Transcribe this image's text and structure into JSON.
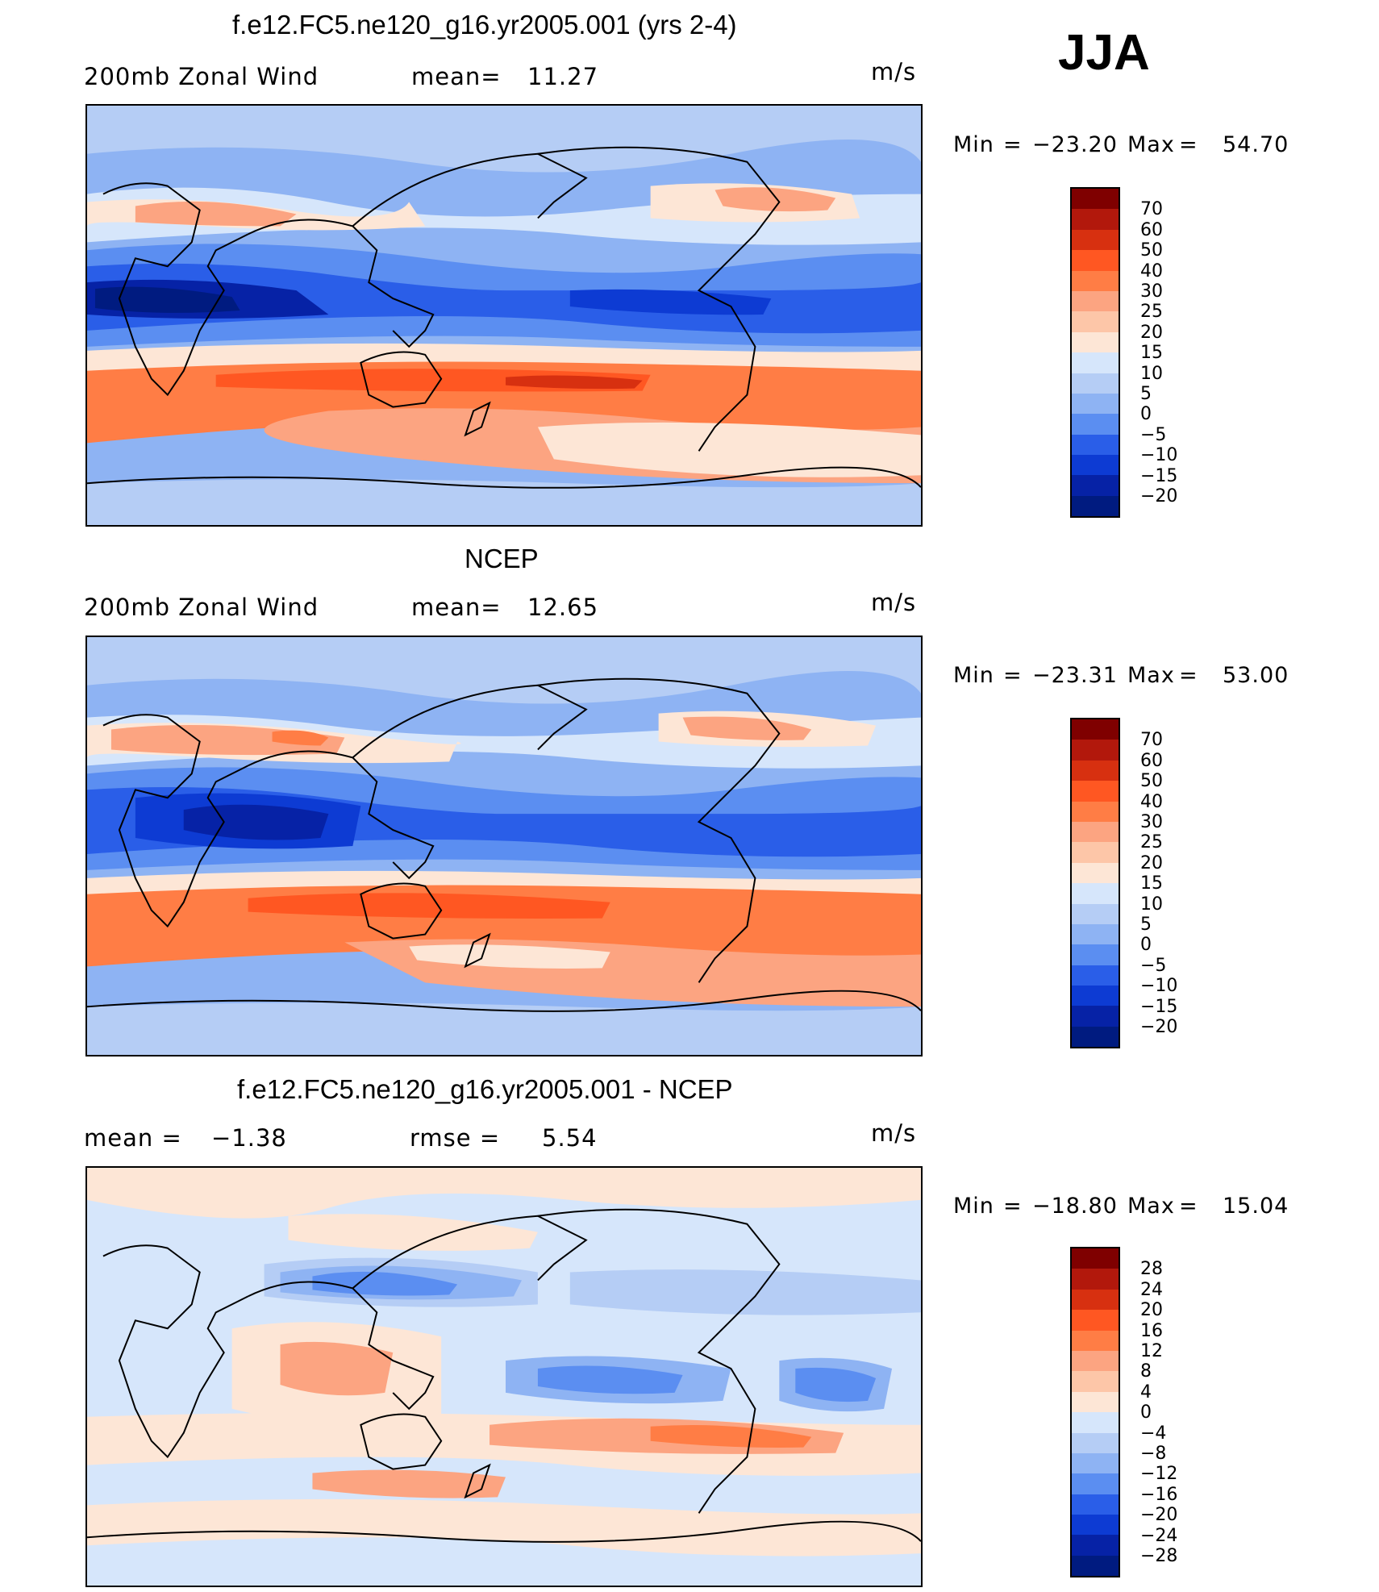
{
  "season": "JJA",
  "panels": [
    {
      "title": "f.e12.FC5.ne120_g16.yr2005.001 (yrs 2-4)",
      "left_label": "200mb Zonal Wind",
      "stat_label": "mean=",
      "stat_value": "11.27",
      "units": "m/s",
      "minmax": {
        "min_label": "Min",
        "eq": "=",
        "min": "−23.20",
        "max_label": "Max",
        "max": "54.70"
      },
      "colorbar": {
        "labels": [
          "70",
          "60",
          "50",
          "40",
          "30",
          "25",
          "20",
          "15",
          "10",
          "5",
          "0",
          "−5",
          "−10",
          "−15",
          "−20"
        ],
        "colors": [
          "#7f0000",
          "#b2180c",
          "#d73010",
          "#ff5722",
          "#ff7d45",
          "#fca481",
          "#fdc6a8",
          "#fde6d6",
          "#d6e6fb",
          "#b5cdf5",
          "#8eb3f3",
          "#5b8ef1",
          "#2a5ee8",
          "#0d3bd3",
          "#0622a6",
          "#001b80"
        ]
      }
    },
    {
      "title": "NCEP",
      "left_label": "200mb Zonal Wind",
      "stat_label": "mean=",
      "stat_value": "12.65",
      "units": "m/s",
      "minmax": {
        "min_label": "Min",
        "eq": "=",
        "min": "−23.31",
        "max_label": "Max",
        "max": "53.00"
      },
      "colorbar": {
        "labels": [
          "70",
          "60",
          "50",
          "40",
          "30",
          "25",
          "20",
          "15",
          "10",
          "5",
          "0",
          "−5",
          "−10",
          "−15",
          "−20"
        ],
        "colors": [
          "#7f0000",
          "#b2180c",
          "#d73010",
          "#ff5722",
          "#ff7d45",
          "#fca481",
          "#fdc6a8",
          "#fde6d6",
          "#d6e6fb",
          "#b5cdf5",
          "#8eb3f3",
          "#5b8ef1",
          "#2a5ee8",
          "#0d3bd3",
          "#0622a6",
          "#001b80"
        ]
      }
    },
    {
      "title": "f.e12.FC5.ne120_g16.yr2005.001 - NCEP",
      "left_label": "mean =",
      "left_value": "−1.38",
      "stat_label": "rmse =",
      "stat_value": "5.54",
      "units": "m/s",
      "minmax": {
        "min_label": "Min",
        "eq": "=",
        "min": "−18.80",
        "max_label": "Max",
        "max": "15.04"
      },
      "colorbar": {
        "labels": [
          "28",
          "24",
          "20",
          "16",
          "12",
          "8",
          "4",
          "0",
          "−4",
          "−8",
          "−12",
          "−16",
          "−20",
          "−24",
          "−28"
        ],
        "colors": [
          "#7f0000",
          "#b2180c",
          "#d73010",
          "#ff5722",
          "#ff7d45",
          "#fca481",
          "#fdc6a8",
          "#fde6d6",
          "#d6e6fb",
          "#b5cdf5",
          "#8eb3f3",
          "#5b8ef1",
          "#2a5ee8",
          "#0d3bd3",
          "#0622a6",
          "#001b80"
        ]
      }
    }
  ]
}
